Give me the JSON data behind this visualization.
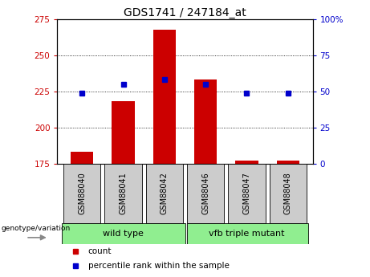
{
  "title": "GDS1741 / 247184_at",
  "categories": [
    "GSM88040",
    "GSM88041",
    "GSM88042",
    "GSM88046",
    "GSM88047",
    "GSM88048"
  ],
  "counts": [
    183,
    218,
    268,
    233,
    177,
    177
  ],
  "percentiles": [
    49,
    55,
    58,
    55,
    49,
    49
  ],
  "ylim_left": [
    175,
    275
  ],
  "ylim_right": [
    0,
    100
  ],
  "yticks_left": [
    175,
    200,
    225,
    250,
    275
  ],
  "yticks_right": [
    0,
    25,
    50,
    75,
    100
  ],
  "bar_color": "#cc0000",
  "dot_color": "#0000cc",
  "bar_width": 0.55,
  "group1_label": "wild type",
  "group2_label": "vfb triple mutant",
  "group_color": "#90ee90",
  "tick_bg_color": "#cccccc",
  "legend_count_label": "count",
  "legend_pct_label": "percentile rank within the sample",
  "genotype_label": "genotype/variation",
  "title_fontsize": 10,
  "tick_fontsize": 7.5,
  "label_fontsize": 7,
  "group_fontsize": 8,
  "legend_fontsize": 7.5
}
